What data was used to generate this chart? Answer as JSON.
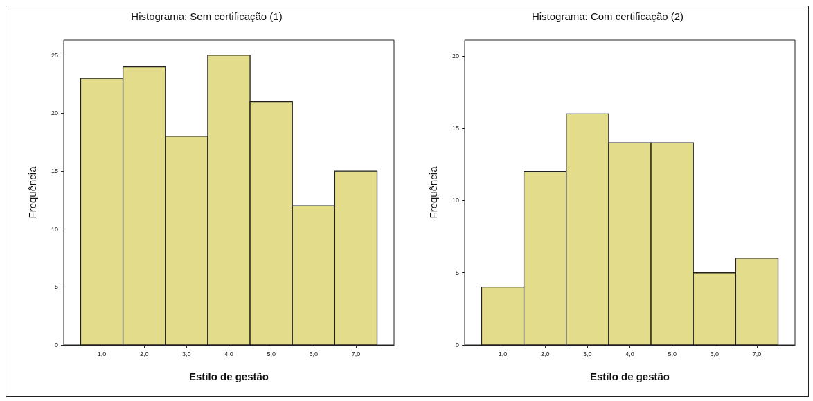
{
  "chart_data": [
    {
      "type": "histogram",
      "title": "Histograma: Sem certificação (1)",
      "xlabel": "Estilo de gestão",
      "ylabel": "Frequência",
      "bins": [
        0.5,
        1.5,
        2.5,
        3.5,
        4.5,
        5.5,
        6.5,
        7.5
      ],
      "values": [
        23,
        24,
        18,
        25,
        21,
        12,
        15
      ],
      "color": "#e3dc8a",
      "xlim": [
        0.1,
        7.9
      ],
      "xticks": [
        {
          "value": 1,
          "label": "1,0"
        },
        {
          "value": 2,
          "label": "2,0"
        },
        {
          "value": 3,
          "label": "3,0"
        },
        {
          "value": 4,
          "label": "4,0"
        },
        {
          "value": 5,
          "label": "5,0"
        },
        {
          "value": 6,
          "label": "6,0"
        },
        {
          "value": 7,
          "label": "7,0"
        }
      ],
      "ylim": [
        0,
        26.3
      ],
      "yticks": [
        0,
        5,
        10,
        15,
        20,
        25
      ],
      "grid": false
    },
    {
      "type": "histogram",
      "title": "Histograma: Com certificação (2)",
      "xlabel": "Estilo de gestão",
      "ylabel": "Frequência",
      "bins": [
        0.5,
        1.5,
        2.5,
        3.5,
        4.5,
        5.5,
        6.5,
        7.5
      ],
      "values": [
        4,
        12,
        16,
        14,
        14,
        5,
        6
      ],
      "color": "#e3dc8a",
      "xlim": [
        0.1,
        7.9
      ],
      "xticks": [
        {
          "value": 1,
          "label": "1,0"
        },
        {
          "value": 2,
          "label": "2,0"
        },
        {
          "value": 3,
          "label": "3,0"
        },
        {
          "value": 4,
          "label": "4,0"
        },
        {
          "value": 5,
          "label": "5,0"
        },
        {
          "value": 6,
          "label": "6,0"
        },
        {
          "value": 7,
          "label": "7,0"
        }
      ],
      "ylim": [
        0,
        21.1
      ],
      "yticks": [
        0,
        5,
        10,
        15,
        20
      ],
      "grid": false
    }
  ]
}
